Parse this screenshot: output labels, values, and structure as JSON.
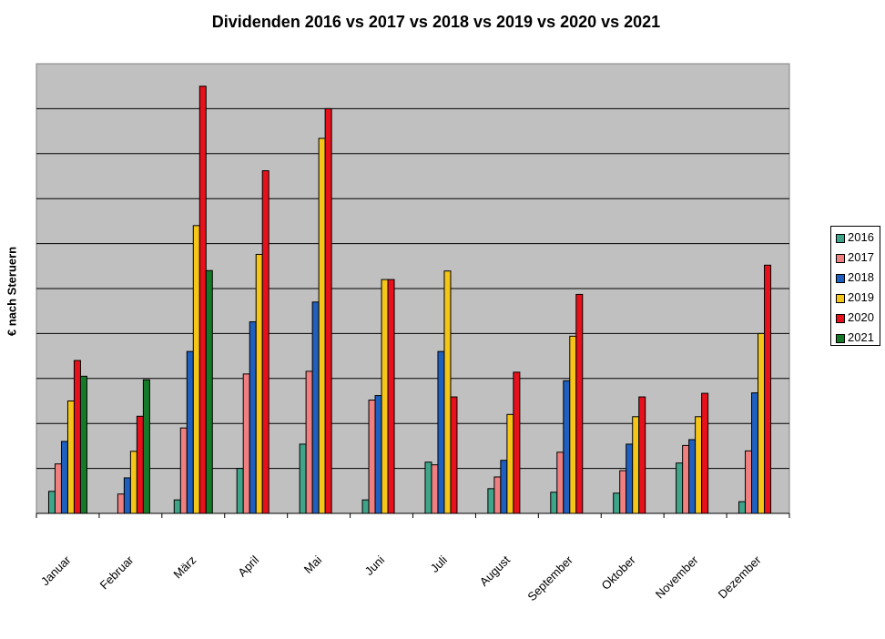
{
  "chart_data": {
    "type": "bar",
    "title": "Dividenden 2016 vs 2017 vs 2018 vs 2019 vs 2020 vs 2021",
    "xlabel": "",
    "ylabel": "€ nach Steruern",
    "ylim": [
      0,
      100
    ],
    "grid": true,
    "legend_position": "right",
    "categories": [
      "Januar",
      "Februar",
      "März",
      "April",
      "Mai",
      "Juni",
      "Juli",
      "August",
      "September",
      "Oktober",
      "November",
      "Dezember"
    ],
    "series": [
      {
        "name": "2016",
        "color": "#3fa58a",
        "values": [
          4.9,
          null,
          3.0,
          10.0,
          15.4,
          3.0,
          11.4,
          5.5,
          4.7,
          4.5,
          11.2,
          2.6
        ]
      },
      {
        "name": "2017",
        "color": "#f08080",
        "values": [
          11.0,
          4.3,
          19.0,
          31.0,
          31.6,
          25.2,
          10.8,
          8.1,
          13.6,
          9.5,
          15.1,
          13.9
        ]
      },
      {
        "name": "2018",
        "color": "#1f5fc0",
        "values": [
          16.0,
          7.9,
          36.0,
          42.6,
          47.0,
          26.2,
          36.0,
          11.8,
          29.5,
          15.4,
          16.4,
          26.8
        ]
      },
      {
        "name": "2019",
        "color": "#f5c518",
        "values": [
          25.0,
          13.8,
          64.0,
          57.6,
          83.4,
          52.0,
          53.9,
          22.0,
          39.4,
          21.5,
          21.5,
          40.0
        ]
      },
      {
        "name": "2020",
        "color": "#e8101a",
        "values": [
          34.0,
          21.6,
          95.0,
          76.2,
          90.0,
          52.0,
          25.9,
          31.4,
          48.7,
          25.9,
          26.7,
          55.2
        ]
      },
      {
        "name": "2021",
        "color": "#157a28",
        "values": [
          30.5,
          29.7,
          54.0,
          null,
          null,
          null,
          null,
          null,
          null,
          null,
          null,
          null
        ]
      }
    ]
  }
}
